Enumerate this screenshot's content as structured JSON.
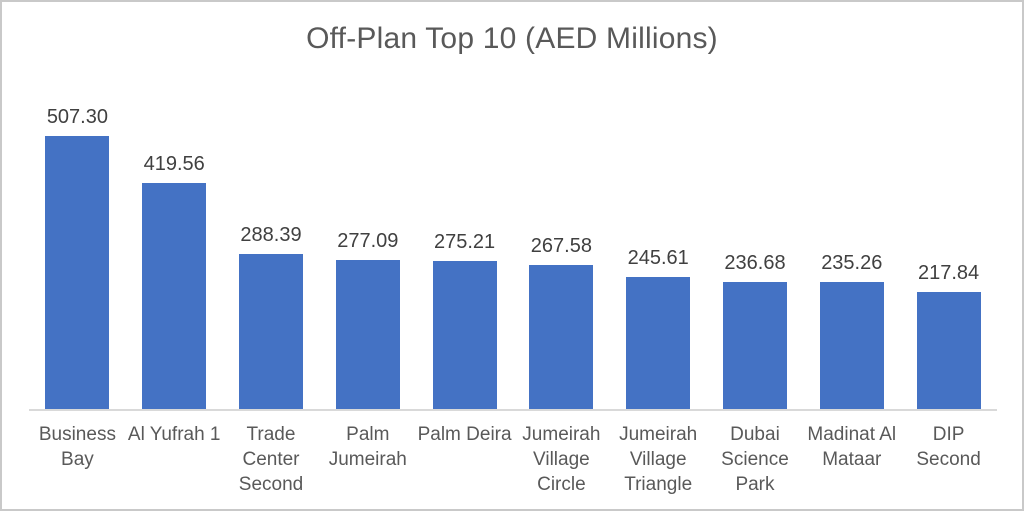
{
  "colors": {
    "bar": "#4472c4",
    "title_text": "#595959",
    "value_label_text": "#404040",
    "category_text": "#595959",
    "axis_line": "#d9d9d9",
    "frame_border": "#c9c9c9",
    "background": "#ffffff"
  },
  "chart_data": {
    "type": "bar",
    "title": "Off-Plan Top 10 (AED Millions)",
    "categories": [
      "Business Bay",
      "Al Yufrah 1",
      "Trade Center Second",
      "Palm Jumeirah",
      "Palm Deira",
      "Jumeirah Village Circle",
      "Jumeirah Village Triangle",
      "Dubai Science Park",
      "Madinat Al Mataar",
      "DIP Second"
    ],
    "category_display_lines": [
      [
        "Business",
        "Bay"
      ],
      [
        "Al Yufrah 1"
      ],
      [
        "Trade",
        "Center",
        "Second"
      ],
      [
        "Palm",
        "Jumeirah"
      ],
      [
        "Palm Deira"
      ],
      [
        "Jumeirah",
        "Village",
        "Circle"
      ],
      [
        "Jumeirah",
        "Village",
        "Triangle"
      ],
      [
        "Dubai",
        "Science",
        "Park"
      ],
      [
        "Madinat Al",
        "Mataar"
      ],
      [
        "DIP",
        "Second"
      ]
    ],
    "values": [
      507.3,
      419.56,
      288.39,
      277.09,
      275.21,
      267.58,
      245.61,
      236.68,
      235.26,
      217.84
    ],
    "value_labels": [
      "507.30",
      "419.56",
      "288.39",
      "277.09",
      "275.21",
      "267.58",
      "245.61",
      "236.68",
      "235.26",
      "217.84"
    ],
    "xlabel": "",
    "ylabel": "",
    "ylim": [
      0,
      550
    ],
    "grid": false,
    "legend": false,
    "data_labels": true,
    "series_name": "Off-Plan"
  }
}
